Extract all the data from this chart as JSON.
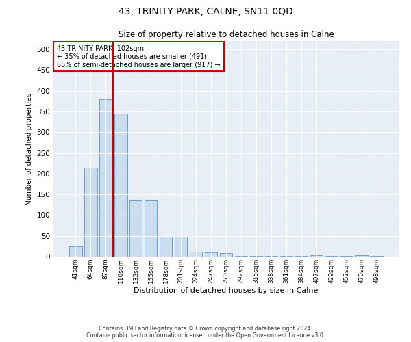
{
  "title": "43, TRINITY PARK, CALNE, SN11 0QD",
  "subtitle": "Size of property relative to detached houses in Calne",
  "xlabel": "Distribution of detached houses by size in Calne",
  "ylabel": "Number of detached properties",
  "bar_color": "#c9ddf0",
  "bar_edge_color": "#6b9fc8",
  "bg_color": "#e8eef6",
  "grid_color": "#ffffff",
  "annotation_box_color": "#cc0000",
  "vline_color": "#cc0000",
  "vline_x_index": 3,
  "annotation_text": "43 TRINITY PARK: 102sqm\n← 35% of detached houses are smaller (491)\n65% of semi-detached houses are larger (917) →",
  "categories": [
    "41sqm",
    "64sqm",
    "87sqm",
    "110sqm",
    "132sqm",
    "155sqm",
    "178sqm",
    "201sqm",
    "224sqm",
    "247sqm",
    "270sqm",
    "292sqm",
    "315sqm",
    "338sqm",
    "361sqm",
    "384sqm",
    "407sqm",
    "429sqm",
    "452sqm",
    "475sqm",
    "498sqm"
  ],
  "values": [
    25,
    215,
    380,
    345,
    135,
    135,
    50,
    50,
    12,
    10,
    8,
    1,
    1,
    1,
    1,
    1,
    4,
    1,
    1,
    3,
    2
  ],
  "ylim": [
    0,
    520
  ],
  "yticks": [
    0,
    50,
    100,
    150,
    200,
    250,
    300,
    350,
    400,
    450,
    500
  ],
  "footnote1": "Contains HM Land Registry data © Crown copyright and database right 2024.",
  "footnote2": "Contains public sector information licensed under the Open Government Licence v3.0."
}
